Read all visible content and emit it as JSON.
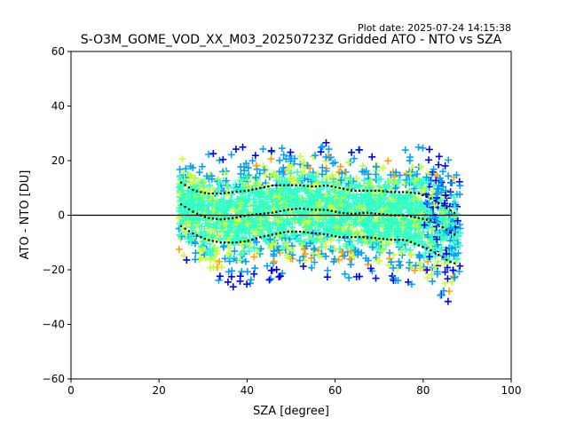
{
  "plot_date": "Plot date: 2025-07-24 14:15:38",
  "chart_data": {
    "type": "scatter",
    "title": "S-O3M_GOME_VOD_XX_M03_20250723Z Gridded ATO - NTO vs SZA",
    "xlabel": "SZA [degree]",
    "ylabel": "ATO - NTO [DU]",
    "xlim": [
      0,
      100
    ],
    "ylim": [
      -60,
      60
    ],
    "xticks": [
      0,
      20,
      40,
      60,
      80,
      100
    ],
    "yticks": [
      -60,
      -40,
      -20,
      0,
      20,
      40,
      60
    ],
    "grid": false,
    "reference_line_y": 0,
    "marker": "+",
    "color_scale": [
      "#0000ff",
      "#00a0ff",
      "#30ffc8",
      "#c8ff30",
      "#ffa000"
    ],
    "x_range_of_points": [
      24.5,
      88.5
    ],
    "bin_mean": {
      "x": [
        25,
        28,
        31,
        34,
        37,
        40,
        43,
        46,
        49,
        52,
        55,
        58,
        61,
        64,
        67,
        70,
        73,
        76,
        79,
        82,
        84,
        86,
        88
      ],
      "y": [
        4,
        1,
        -1,
        -1.5,
        -1,
        0,
        0.5,
        1,
        2,
        2.5,
        2,
        2,
        1,
        0.5,
        1,
        0.5,
        0,
        0,
        -1,
        -2,
        -4,
        -6,
        -8
      ]
    },
    "bin_plus_std": {
      "x": [
        25,
        28,
        31,
        34,
        37,
        40,
        43,
        46,
        49,
        52,
        55,
        58,
        61,
        64,
        67,
        70,
        73,
        76,
        79,
        82,
        84,
        86,
        88
      ],
      "y": [
        12,
        9,
        8,
        8,
        8.5,
        9,
        10,
        11,
        11,
        11,
        10.5,
        11,
        10,
        9,
        9,
        9,
        8.5,
        8.5,
        8,
        6,
        4,
        2,
        0
      ]
    },
    "bin_minus_std": {
      "x": [
        25,
        28,
        31,
        34,
        37,
        40,
        43,
        46,
        49,
        52,
        55,
        58,
        61,
        64,
        67,
        70,
        73,
        76,
        79,
        82,
        84,
        86,
        88
      ],
      "y": [
        -4,
        -7,
        -9,
        -10,
        -10,
        -9.5,
        -8,
        -7,
        -6,
        -6,
        -6.5,
        -7,
        -8,
        -8,
        -8,
        -8.5,
        -9,
        -9,
        -11,
        -13,
        -15,
        -17,
        -18
      ]
    }
  }
}
